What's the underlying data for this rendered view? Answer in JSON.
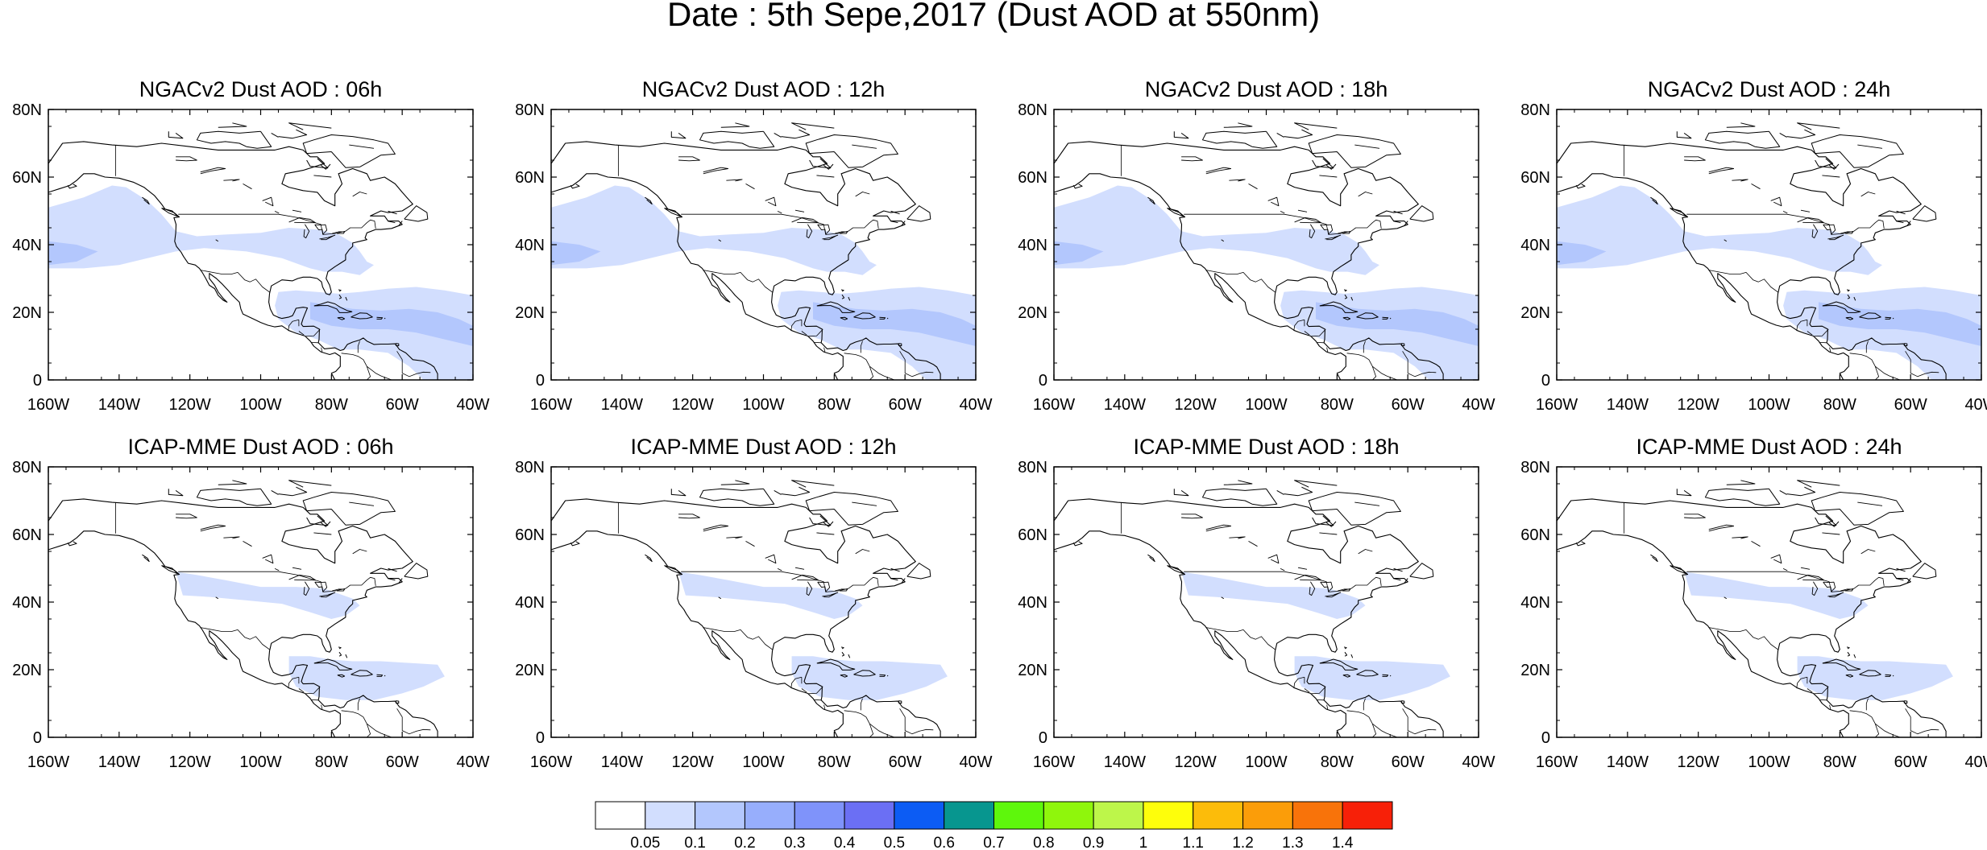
{
  "figure": {
    "title": "Date : 5th Sepe,2017 (Dust AOD at 550nm)",
    "x_ticks": [
      "160W",
      "140W",
      "120W",
      "100W",
      "80W",
      "60W",
      "40W"
    ],
    "y_ticks": [
      "0",
      "20N",
      "40N",
      "60N",
      "80N"
    ],
    "lon_range": [
      -160,
      -40
    ],
    "lat_range": [
      0,
      80
    ]
  },
  "panels": [
    {
      "title": "NGACv2 Dust AOD : 06h",
      "model": "NGACv2",
      "hour": "06"
    },
    {
      "title": "NGACv2 Dust AOD : 12h",
      "model": "NGACv2",
      "hour": "12"
    },
    {
      "title": "NGACv2 Dust AOD : 18h",
      "model": "NGACv2",
      "hour": "18"
    },
    {
      "title": "NGACv2 Dust AOD : 24h",
      "model": "NGACv2",
      "hour": "24"
    },
    {
      "title": "ICAP-MME Dust AOD : 06h",
      "model": "ICAP-MME",
      "hour": "06"
    },
    {
      "title": "ICAP-MME Dust AOD : 12h",
      "model": "ICAP-MME",
      "hour": "12"
    },
    {
      "title": "ICAP-MME Dust AOD : 18h",
      "model": "ICAP-MME",
      "hour": "18"
    },
    {
      "title": "ICAP-MME Dust AOD : 24h",
      "model": "ICAP-MME",
      "hour": "24"
    }
  ],
  "colorbar": {
    "labels": [
      "0.05",
      "0.1",
      "0.2",
      "0.3",
      "0.4",
      "0.5",
      "0.6",
      "0.7",
      "0.8",
      "0.9",
      "1",
      "1.1",
      "1.2",
      "1.3",
      "1.4"
    ],
    "colors": [
      "#ffffff",
      "#d2defe",
      "#b3c7fd",
      "#97aefc",
      "#7f93fa",
      "#6b6ff4",
      "#0c5cf4",
      "#07968f",
      "#5ef70c",
      "#8ff60c",
      "#bdf64a",
      "#fefe0b",
      "#fcbc0a",
      "#fb9d09",
      "#f8730a",
      "#f72008"
    ]
  },
  "map_style": {
    "coast_color": "#000000",
    "plume_colors": [
      "#d2defe",
      "#b3c7fd"
    ]
  }
}
